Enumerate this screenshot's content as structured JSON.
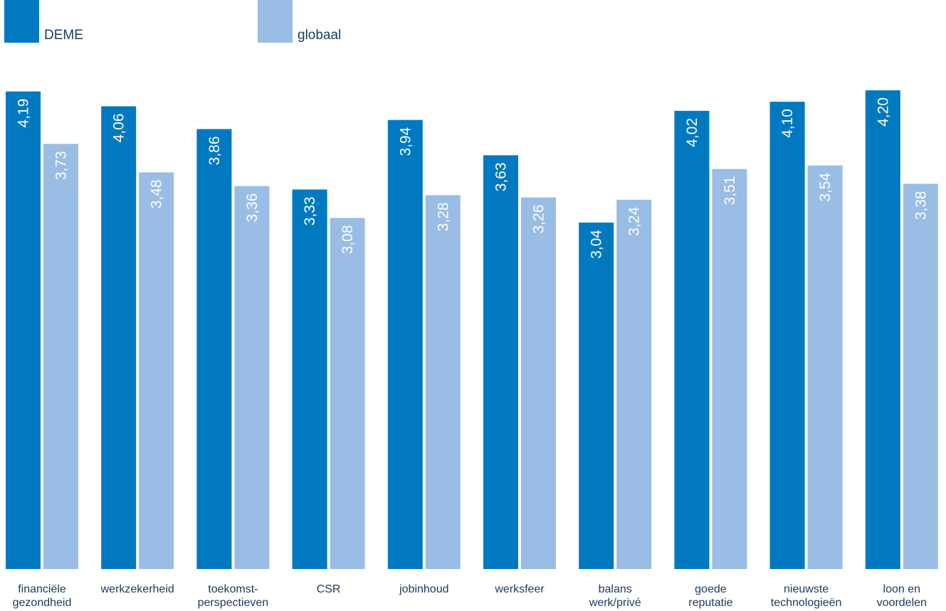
{
  "chart_data": {
    "type": "bar",
    "categories": [
      [
        "financiële",
        "gezondheid"
      ],
      [
        "werkzekerheid"
      ],
      [
        "toekomst-",
        "perspectieven"
      ],
      [
        "CSR"
      ],
      [
        "jobinhoud"
      ],
      [
        "werksfeer"
      ],
      [
        "balans",
        "werk/privé"
      ],
      [
        "goede",
        "reputatie"
      ],
      [
        "nieuwste",
        "technologieën"
      ],
      [
        "loon en",
        "voordelen"
      ]
    ],
    "series": [
      {
        "name": "DEME",
        "color": "#0079c1",
        "values": [
          4.19,
          4.06,
          3.86,
          3.33,
          3.94,
          3.63,
          3.04,
          4.02,
          4.1,
          4.2
        ],
        "labels": [
          "4,19",
          "4,06",
          "3,86",
          "3,33",
          "3,94",
          "3,63",
          "3,04",
          "4,02",
          "4,10",
          "4,20"
        ]
      },
      {
        "name": "globaal",
        "color": "#99bde4",
        "values": [
          3.73,
          3.48,
          3.36,
          3.08,
          3.28,
          3.26,
          3.24,
          3.51,
          3.54,
          3.38
        ],
        "labels": [
          "3,73",
          "3,48",
          "3,36",
          "3,08",
          "3,28",
          "3,26",
          "3,24",
          "3,51",
          "3,54",
          "3,38"
        ]
      }
    ],
    "ylim": [
      0,
      4.2
    ],
    "legend_position": "top-left",
    "grid": false,
    "title": "",
    "xlabel": "",
    "ylabel": ""
  }
}
